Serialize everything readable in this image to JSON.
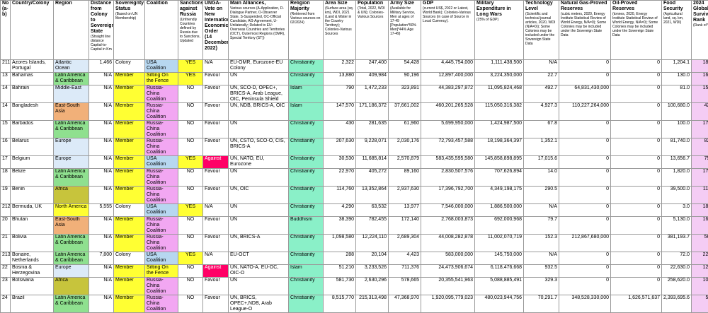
{
  "headers": [
    {
      "title": "No (a-b)",
      "sub": ""
    },
    {
      "title": "Country/Colony",
      "sub": ""
    },
    {
      "title": "Region",
      "sub": ""
    },
    {
      "title": "Distance from Colony to Sovereign State",
      "sub": "(Straight line distance Capital-to-Capital in Km"
    },
    {
      "title": "Sovereignty Status",
      "sub": "(Based on UN Membership)"
    },
    {
      "title": "Coalition",
      "sub": ""
    },
    {
      "title": "Sanctions against Russia",
      "sub": "(Unfriendly Countries defined by Russia due to Sanctions, Updated"
    },
    {
      "title": "UNGA-Vote on New International Economic Order (14 December 2022)",
      "sub": ""
    },
    {
      "title": "Main Alliances,",
      "sub": "Various sources (A-Application, D-Dialogue Partner, O-Observer State, S-Suspended, OC-Official Candidate, AG-Agreement, U-Unilaterally; Related to EU: Overseas Countries and Territories (OCT), Outermost Regions (OMR), Special Territory (ST))"
    },
    {
      "title": "Religion Majority",
      "sub": "(Retrieved from Various sources on 02/2024)"
    },
    {
      "title": "Area Size",
      "sub": "(Surface area (sq. km), WDI, 2021 (Land & Water in the Country Territory); Colonies-Various Sources"
    },
    {
      "title": "Population",
      "sub": "(Total, 2022, WDI & UN); Colonies-Various Sources"
    },
    {
      "title": "Army Size",
      "sub": "(Available for Military Service, Men at ages of 17-49 [Population*50% Men]*44% Age 17-49)"
    },
    {
      "title": "GDP",
      "sub": "(current US$, 2022 or Latest, World Bank); Colonies-Various Sources (in case of Source in Local Currency)."
    },
    {
      "title": "Military Expenditure in Long Wars",
      "sub": "(25% of GDP)"
    },
    {
      "title": "Technology Level",
      "sub": "(Scientific and technical journal articles, 2020, WDI (N/A=0)); Some Colonies may be included under the Sovereign State Data"
    },
    {
      "title": "Natural Gas-Proved Reserves",
      "sub": "(cubic meters, 2020, Energy Institute Statistical Review of World Energy, N/A=0); Some Colonies may be included under the Sovereign State Data"
    },
    {
      "title": "Oil-Proved Reserves",
      "sub": "(tonnes, 2020, Energy Institute Statistical Review of World Energy, N/A=0); Some Colonies may be included under the Sovereign State Data"
    },
    {
      "title": "Food Security",
      "sub": "(Agricultural land, sq. km, 2021, WDI)"
    },
    {
      "title": "2024 Global Survival Rank",
      "sub": "(Rank of WR)"
    }
  ],
  "rows": [
    {
      "no": "211",
      "country": "Azores Islands, Portugal",
      "region": "Atlantic Ocean",
      "distance": "1,466",
      "status": "Colony",
      "coalition": "USA Coalition",
      "sanctions": "YES",
      "ungaVote": "N/A",
      "alliances": "EU-OMR, Eurozone-EU Colony",
      "religion": "Christianity",
      "area": "2,322",
      "population": "247,400",
      "army": "54,428",
      "gdp": "4,445,754,000",
      "military": "1,111,438,500",
      "tech": "N/A",
      "gas": "0",
      "oil": "0",
      "food": "1,204.1",
      "rank": "183"
    },
    {
      "no": "13",
      "country": "Bahamas",
      "region": "Latin America & Caribbean",
      "distance": "N/A",
      "status": "Member",
      "coalition": "Sitting On the Fence",
      "sanctions": "YES",
      "ungaVote": "Favour",
      "alliances": "UN",
      "religion": "Christianity",
      "area": "13,880",
      "population": "409,984",
      "army": "90,196",
      "gdp": "12,897,400,000",
      "military": "3,224,350,000",
      "tech": "22.7",
      "gas": "0",
      "oil": "0",
      "food": "130.0",
      "rank": "166"
    },
    {
      "no": "14",
      "country": "Bahrain",
      "region": "Middle-East",
      "distance": "N/A",
      "status": "Member",
      "coalition": "Russia-China Coalition",
      "sanctions": "NO",
      "ungaVote": "Favour",
      "alliances": "UN, SCO-D, OPEC+, BRICS-A, Arab League, OIC, Peninsula Shield",
      "religion": "Islam",
      "area": "790",
      "population": "1,472,233",
      "army": "323,891",
      "gdp": "44,383,297,872",
      "military": "11,095,824,468",
      "tech": "492.7",
      "gas": "64,831,430,000",
      "oil": "0",
      "food": "81.0",
      "rank": "153"
    },
    {
      "no": "14",
      "country": "Bangladesh",
      "region": "East-South Asia",
      "distance": "N/A",
      "status": "Member",
      "coalition": "Russia-China Coalition",
      "sanctions": "NO",
      "ungaVote": "Favour",
      "alliances": "UN, NDB, BRICS-A, OIC",
      "religion": "Islam",
      "area": "147,570",
      "population": "171,186,372",
      "army": "37,661,002",
      "gdp": "460,201,265,528",
      "military": "115,050,316,382",
      "tech": "4,927.3",
      "gas": "110,227,264,000",
      "oil": "0",
      "food": "100,680.0",
      "rank": "42"
    },
    {
      "no": "15",
      "country": "Barbados",
      "region": "Latin America & Caribbean",
      "distance": "N/A",
      "status": "Member",
      "coalition": "Russia-China Coalition",
      "sanctions": "NO",
      "ungaVote": "Favour",
      "alliances": "UN",
      "religion": "Christianity",
      "area": "430",
      "population": "281,635",
      "army": "61,960",
      "gdp": "5,699,950,000",
      "military": "1,424,987,500",
      "tech": "67.8",
      "gas": "0",
      "oil": "0",
      "food": "100.0",
      "rank": "178"
    },
    {
      "no": "16",
      "country": "Belarus",
      "region": "Europe",
      "distance": "N/A",
      "status": "Member",
      "coalition": "Russia-China Coalition",
      "sanctions": "NO",
      "ungaVote": "Favour",
      "alliances": "UN, CSTO, SCO-O, CIS, BRICS-A",
      "religion": "Christianity",
      "area": "207,630",
      "population": "9,228,071",
      "army": "2,030,176",
      "gdp": "72,793,457,588",
      "military": "18,198,364,397",
      "tech": "1,352.1",
      "gas": "0",
      "oil": "0",
      "food": "81,740.0",
      "rank": "82"
    },
    {
      "no": "17",
      "country": "Belgium",
      "region": "Europe",
      "distance": "N/A",
      "status": "Member",
      "coalition": "USA Coalition",
      "sanctions": "YES",
      "ungaVote": "Against",
      "alliances": "UN, NATO, EU, Eurozone",
      "religion": "Christianity",
      "area": "30,530",
      "population": "11,685,814",
      "army": "2,570,879",
      "gdp": "583,435,595,580",
      "military": "145,858,898,895",
      "tech": "17,015.6",
      "gas": "0",
      "oil": "0",
      "food": "13,656.7",
      "rank": "75"
    },
    {
      "no": "18",
      "country": "Belize",
      "region": "Latin America & Caribbean",
      "distance": "N/A",
      "status": "Member",
      "coalition": "Russia-China Coalition",
      "sanctions": "NO",
      "ungaVote": "Favour",
      "alliances": "UN",
      "religion": "Christianity",
      "area": "22,970",
      "population": "405,272",
      "army": "89,160",
      "gdp": "2,830,507,576",
      "military": "707,626,894",
      "tech": "14.0",
      "gas": "0",
      "oil": "0",
      "food": "1,820.0",
      "rank": "173"
    },
    {
      "no": "19",
      "country": "Benin",
      "region": "Africa",
      "distance": "N/A",
      "status": "Member",
      "coalition": "Russia-China Coalition",
      "sanctions": "NO",
      "ungaVote": "Favour",
      "alliances": "UN, OIC",
      "religion": "Christianity",
      "area": "114,760",
      "population": "13,352,864",
      "army": "2,937,630",
      "gdp": "17,396,792,700",
      "military": "4,349,198,175",
      "tech": "290.5",
      "gas": "0",
      "oil": "0",
      "food": "39,500.0",
      "rank": "112"
    },
    {
      "no": "212",
      "country": "Bermuda, UK",
      "region": "North America",
      "distance": "5,555",
      "status": "Colony",
      "coalition": "USA Coalition",
      "sanctions": "YES",
      "ungaVote": "N/A",
      "alliances": "UN",
      "religion": "Christianity",
      "area": "4,290",
      "population": "63,532",
      "army": "13,977",
      "gdp": "7,546,000,000",
      "military": "1,886,500,000",
      "tech": "N/A",
      "gas": "0",
      "oil": "0",
      "food": "3.0",
      "rank": "188"
    },
    {
      "no": "20",
      "country": "Bhutan",
      "region": "East-South Asia",
      "distance": "N/A",
      "status": "Member",
      "coalition": "Russia-China Coalition",
      "sanctions": "NO",
      "ungaVote": "Favour",
      "alliances": "UN",
      "religion": "Buddhism",
      "area": "38,390",
      "population": "782,455",
      "army": "172,140",
      "gdp": "2,768,003,873",
      "military": "692,000,968",
      "tech": "79.7",
      "gas": "0",
      "oil": "0",
      "food": "5,130.0",
      "rank": "162"
    },
    {
      "no": "21",
      "country": "Bolivia",
      "region": "Latin America & Caribbean",
      "distance": "N/A",
      "status": "Member",
      "coalition": "Russia-China Coalition",
      "sanctions": "NO",
      "ungaVote": "Favour",
      "alliances": "UN, BRICS-A",
      "religion": "Christianity",
      "area": "1,098,580",
      "population": "12,224,110",
      "army": "2,689,304",
      "gdp": "44,008,282,878",
      "military": "11,002,070,719",
      "tech": "152.3",
      "gas": "212,867,680,000",
      "oil": "0",
      "food": "381,193.7",
      "rank": "56"
    },
    {
      "no": "213",
      "country": "Bonaire, Netherlands",
      "region": "Latin America & Caribbean",
      "distance": "7,800",
      "status": "Colony",
      "coalition": "USA Coalition",
      "sanctions": "YES",
      "ungaVote": "N/A",
      "alliances": "EU-OCT",
      "religion": "Christianity",
      "area": "288",
      "population": "20,104",
      "army": "4,423",
      "gdp": "583,000,000",
      "military": "145,750,000",
      "tech": "N/A",
      "gas": "0",
      "oil": "0",
      "food": "72.0",
      "rank": "222"
    },
    {
      "no": "22",
      "country": "Bosnia & Herzegovina",
      "region": "Europe",
      "distance": "N/A",
      "status": "Member",
      "coalition": "Sitting On the Fence",
      "sanctions": "NO",
      "ungaVote": "Against",
      "alliances": "UN, NATO-A, EU-OC, OIC-O",
      "religion": "Islam",
      "area": "51,210",
      "population": "3,233,526",
      "army": "711,376",
      "gdp": "24,473,906,674",
      "military": "6,118,476,668",
      "tech": "932.5",
      "gas": "0",
      "oil": "0",
      "food": "22,630.0",
      "rank": "129"
    },
    {
      "no": "23",
      "country": "Botswana",
      "region": "Africa",
      "distance": "N/A",
      "status": "Member",
      "coalition": "Russia-China Coalition",
      "sanctions": "NO",
      "ungaVote": "Favour",
      "alliances": "UN",
      "religion": "Christianity",
      "area": "581,730",
      "population": "2,630,296",
      "army": "578,665",
      "gdp": "20,355,541,963",
      "military": "5,088,885,491",
      "tech": "329.3",
      "gas": "0",
      "oil": "0",
      "food": "258,620.0",
      "rank": "104"
    },
    {
      "no": "24",
      "country": "Brazil",
      "region": "Latin America & Caribbean",
      "distance": "N/A",
      "status": "Member",
      "coalition": "Russia-China Coalition",
      "sanctions": "NO",
      "ungaVote": "Favour",
      "alliances": "UN, BRICS, OPEC+,NDB, Arab League-O",
      "religion": "Christianity",
      "area": "8,515,770",
      "population": "215,313,498",
      "army": "47,368,970",
      "gdp": "1,920,095,779,023",
      "military": "480,023,944,756",
      "tech": "70,291.7",
      "gas": "348,528,330,000",
      "oil": "1,626,571,637",
      "food": "2,393,695.6",
      "rank": "5"
    }
  ],
  "colors": {
    "atlantic": "#b7d7f0",
    "latin_america": "#8fe08f",
    "east_south_asia": "#f1b079",
    "africa": "#c7c43c",
    "member": "#ffff33",
    "russia_china": "#f2a7f2",
    "usa": "#b7d7f0",
    "against": "#ff0066",
    "religion": "#8af0c8",
    "rank": "#f4ccf4"
  }
}
